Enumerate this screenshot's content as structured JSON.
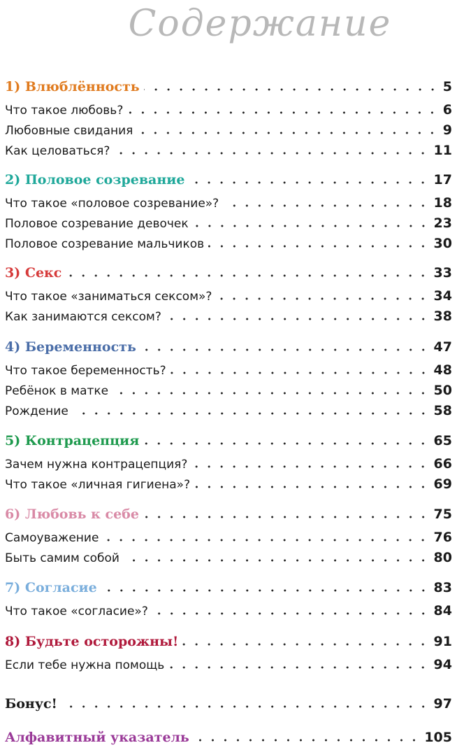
{
  "title": "Содержание",
  "chapters": [
    {
      "label": "1) Влюблённость",
      "page": "5",
      "color": "#e07b1f",
      "items": [
        {
          "label": "Что такое любовь?",
          "page": "6"
        },
        {
          "label": "Любовные свидания",
          "page": "9"
        },
        {
          "label": "Как целоваться?",
          "page": "11"
        }
      ]
    },
    {
      "label": "2) Половое созревание",
      "page": "17",
      "color": "#1fa89a",
      "items": [
        {
          "label": "Что такое «половое созревание»?",
          "page": "18"
        },
        {
          "label": "Половое созревание девочек",
          "page": "23"
        },
        {
          "label": "Половое созревание мальчиков",
          "page": "30"
        }
      ]
    },
    {
      "label": "3) Секс",
      "page": "33",
      "color": "#d63a3a",
      "items": [
        {
          "label": "Что такое «заниматься сексом»?",
          "page": "34"
        },
        {
          "label": "Как занимаются сексом?",
          "page": "38"
        }
      ]
    },
    {
      "label": "4) Беременность",
      "page": "47",
      "color": "#4b6ea8",
      "items": [
        {
          "label": "Что такое беременность?",
          "page": "48"
        },
        {
          "label": "Ребёнок в матке",
          "page": "50"
        },
        {
          "label": "Рождение",
          "page": "58"
        }
      ]
    },
    {
      "label": "5) Контрацепция",
      "page": "65",
      "color": "#1e9a4e",
      "items": [
        {
          "label": "Зачем нужна контрацепция?",
          "page": "66"
        },
        {
          "label": "Что такое «личная гигиена»?",
          "page": "69"
        }
      ]
    },
    {
      "label": "6) Любовь к себе",
      "page": "75",
      "color": "#d98aa6",
      "items": [
        {
          "label": "Самоуважение",
          "page": "76"
        },
        {
          "label": "Быть самим собой",
          "page": "80"
        }
      ]
    },
    {
      "label": "7) Согласие",
      "page": "83",
      "color": "#7aaedc",
      "items": [
        {
          "label": "Что такое «согласие»?",
          "page": "84"
        }
      ]
    },
    {
      "label": "8) Будьте осторожны!",
      "page": "91",
      "color": "#b01a3c",
      "items": [
        {
          "label": "Если тебе нужна помощь",
          "page": "94"
        }
      ]
    },
    {
      "label": "Бонус!",
      "page": "97",
      "color": "#1a1a1a",
      "items": []
    },
    {
      "label": "Алфавитный указатель",
      "page": "105",
      "color": "#9a3a98",
      "items": []
    }
  ]
}
